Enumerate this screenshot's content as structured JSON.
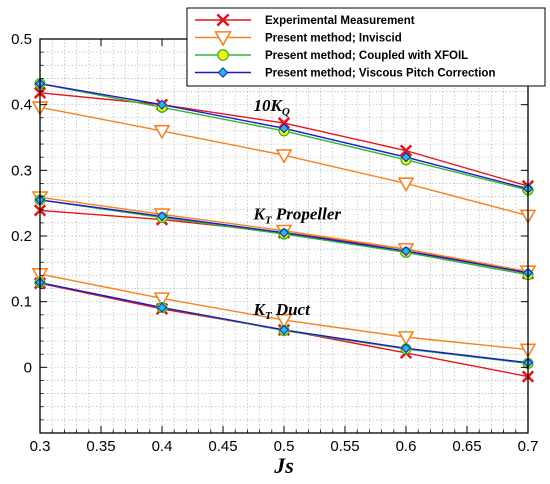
{
  "chart_data": {
    "type": "line",
    "title": "",
    "xlabel": "Js",
    "ylabel": "",
    "xlim": [
      0.3,
      0.7
    ],
    "ylim": [
      -0.1,
      0.5
    ],
    "xticks": [
      "0.3",
      "0.35",
      "0.4",
      "0.45",
      "0.5",
      "0.55",
      "0.6",
      "0.65",
      "0.7"
    ],
    "yticks": [
      "0",
      "0.1",
      "0.2",
      "0.3",
      "0.4",
      "0.5"
    ],
    "grid": true,
    "legend_position": "top-right",
    "series": [
      {
        "name": "Experimental Measurement",
        "color": "#e8141c",
        "marker": "x",
        "curves": [
          {
            "group": "10KQ",
            "x": [
              0.3,
              0.4,
              0.5,
              0.6,
              0.7
            ],
            "y": [
              0.418,
              0.4,
              0.372,
              0.33,
              0.276
            ]
          },
          {
            "group": "KT Propeller",
            "x": [
              0.3,
              0.4,
              0.5,
              0.6,
              0.7
            ],
            "y": [
              0.239,
              0.225,
              0.205,
              0.18,
              0.143
            ]
          },
          {
            "group": "KT Duct",
            "x": [
              0.3,
              0.4,
              0.5,
              0.6,
              0.7
            ],
            "y": [
              0.128,
              0.089,
              0.057,
              0.022,
              -0.014
            ]
          }
        ]
      },
      {
        "name": "Present method; Inviscid",
        "color": "#f58220",
        "marker": "triangle-down",
        "curves": [
          {
            "group": "10KQ",
            "x": [
              0.3,
              0.4,
              0.5,
              0.6,
              0.7
            ],
            "y": [
              0.396,
              0.36,
              0.323,
              0.28,
              0.231
            ]
          },
          {
            "group": "KT Propeller",
            "x": [
              0.3,
              0.4,
              0.5,
              0.6,
              0.7
            ],
            "y": [
              0.259,
              0.233,
              0.208,
              0.18,
              0.146
            ]
          },
          {
            "group": "KT Duct",
            "x": [
              0.3,
              0.4,
              0.5,
              0.6,
              0.7
            ],
            "y": [
              0.142,
              0.105,
              0.072,
              0.046,
              0.027
            ]
          }
        ]
      },
      {
        "name": "Present method; Coupled with XFOIL",
        "color": "#2eb82e",
        "marker": "circle",
        "marker_fill": "#f5f500",
        "curves": [
          {
            "group": "10KQ",
            "x": [
              0.3,
              0.4,
              0.5,
              0.6,
              0.7
            ],
            "y": [
              0.432,
              0.396,
              0.36,
              0.316,
              0.27
            ]
          },
          {
            "group": "KT Propeller",
            "x": [
              0.3,
              0.4,
              0.5,
              0.6,
              0.7
            ],
            "y": [
              0.255,
              0.228,
              0.203,
              0.175,
              0.141
            ]
          },
          {
            "group": "KT Duct",
            "x": [
              0.3,
              0.4,
              0.5,
              0.6,
              0.7
            ],
            "y": [
              0.129,
              0.091,
              0.056,
              0.028,
              0.006
            ]
          }
        ]
      },
      {
        "name": "Present method; Viscous Pitch Correction",
        "color": "#1a1acc",
        "marker": "diamond",
        "marker_fill": "#22b8e8",
        "curves": [
          {
            "group": "10KQ",
            "x": [
              0.3,
              0.4,
              0.5,
              0.6,
              0.7
            ],
            "y": [
              0.432,
              0.4,
              0.364,
              0.32,
              0.272
            ]
          },
          {
            "group": "KT Propeller",
            "x": [
              0.3,
              0.4,
              0.5,
              0.6,
              0.7
            ],
            "y": [
              0.255,
              0.23,
              0.205,
              0.177,
              0.144
            ]
          },
          {
            "group": "KT Duct",
            "x": [
              0.3,
              0.4,
              0.5,
              0.6,
              0.7
            ],
            "y": [
              0.129,
              0.091,
              0.057,
              0.029,
              0.007
            ]
          }
        ]
      }
    ],
    "annotations": [
      {
        "id": "kq",
        "main": "10K",
        "sub": "Q",
        "rest": "",
        "x": 0.475,
        "y": 0.39
      },
      {
        "id": "ktp",
        "main": "K",
        "sub": "T",
        "rest": " Propeller",
        "x": 0.475,
        "y": 0.225
      },
      {
        "id": "ktd",
        "main": "K",
        "sub": "T",
        "rest": " Duct",
        "x": 0.475,
        "y": 0.08
      }
    ]
  }
}
